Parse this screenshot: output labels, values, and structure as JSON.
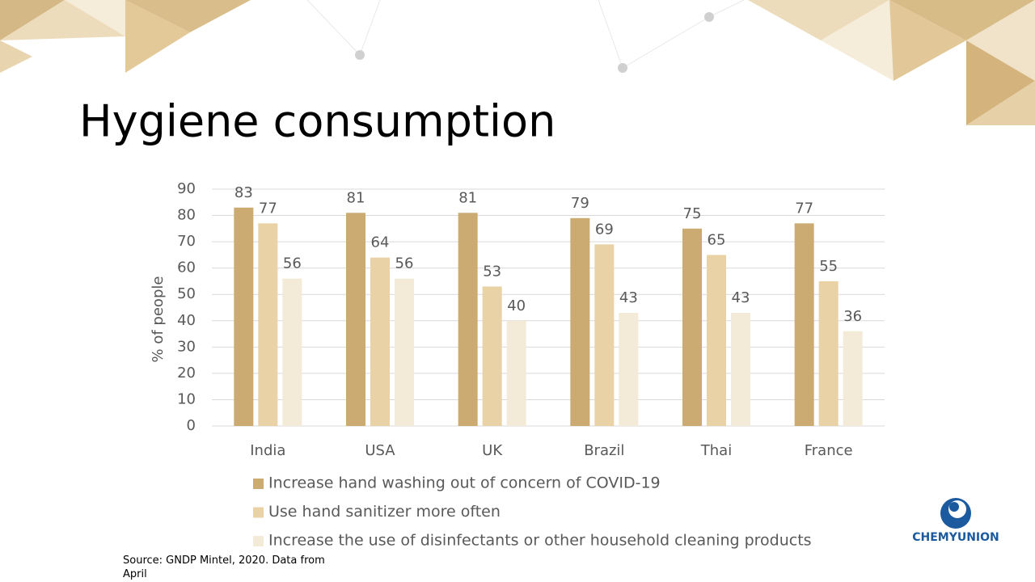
{
  "chart_data": {
    "type": "bar",
    "title": "Hygiene consumption",
    "categories": [
      "India",
      "USA",
      "UK",
      "Brazil",
      "Thai",
      "France"
    ],
    "series": [
      {
        "name": "Increase hand washing out of concern of COVID-19",
        "color": "#cbab72",
        "values": [
          83,
          81,
          81,
          79,
          75,
          77
        ]
      },
      {
        "name": "Use hand sanitizer more often",
        "color": "#e8d2a6",
        "values": [
          77,
          64,
          53,
          69,
          65,
          55
        ]
      },
      {
        "name": "Increase the use of disinfectants or other household cleaning products",
        "color": "#f3ead7",
        "values": [
          56,
          56,
          40,
          43,
          43,
          36
        ]
      }
    ],
    "y_label": "% of people",
    "ylim": [
      0,
      90
    ],
    "yticks": [
      0,
      10,
      20,
      30,
      40,
      50,
      60,
      70,
      80,
      90
    ],
    "grid": true
  },
  "source": "Source: GNDP Mintel, 2020. Data from April",
  "logo": "CHEMYUNION"
}
